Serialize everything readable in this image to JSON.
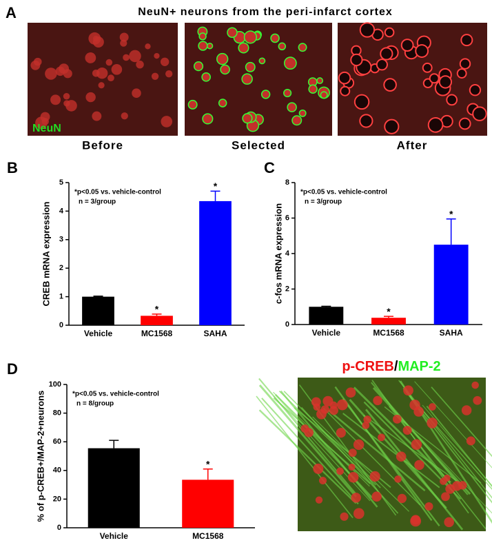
{
  "panel_a": {
    "label": "A",
    "title": "NeuN+ neurons from the peri-infarct cortex",
    "stain": "NeuN",
    "captions": [
      "Before",
      "Selected",
      "After"
    ]
  },
  "panel_d_image": {
    "title_red": "p-CREB",
    "separator": "/",
    "title_green": "MAP-2"
  },
  "chart_data": [
    {
      "type": "bar",
      "label": "B",
      "ylabel": "CREB mRNA expression",
      "categories": [
        "Vehicle",
        "MC1568",
        "SAHA"
      ],
      "values": [
        1.0,
        0.33,
        4.35
      ],
      "errors": [
        0.02,
        0.06,
        0.35
      ],
      "colors": [
        "#000000",
        "#ff0000",
        "#0000ff"
      ],
      "markers": [
        null,
        "*",
        "*"
      ],
      "annotations": [
        "*p<0.05 vs. vehicle-control",
        "n = 3/group"
      ],
      "ylim": [
        0,
        5
      ],
      "yticks": [
        0,
        1,
        2,
        3,
        4,
        5
      ]
    },
    {
      "type": "bar",
      "label": "C",
      "ylabel": "c-fos mRNA expression",
      "categories": [
        "Vehicle",
        "MC1568",
        "SAHA"
      ],
      "values": [
        1.0,
        0.38,
        4.5
      ],
      "errors": [
        0.03,
        0.08,
        1.45
      ],
      "colors": [
        "#000000",
        "#ff0000",
        "#0000ff"
      ],
      "markers": [
        null,
        "*",
        "*"
      ],
      "annotations": [
        "*p<0.05 vs. vehicle-control",
        "n = 3/group"
      ],
      "ylim": [
        0,
        8
      ],
      "yticks": [
        0,
        2,
        4,
        6,
        8
      ]
    },
    {
      "type": "bar",
      "label": "D",
      "ylabel": "% of p-CREB+/MAP-2+neurons",
      "categories": [
        "Vehicle",
        "MC1568"
      ],
      "values": [
        55.5,
        33.5
      ],
      "errors": [
        5.5,
        7.5
      ],
      "colors": [
        "#000000",
        "#ff0000"
      ],
      "markers": [
        null,
        "*"
      ],
      "annotations": [
        "*p<0.05 vs. vehicle-control",
        "n = 8/group"
      ],
      "ylim": [
        0,
        100
      ],
      "yticks": [
        0,
        20,
        40,
        60,
        80,
        100
      ]
    }
  ]
}
